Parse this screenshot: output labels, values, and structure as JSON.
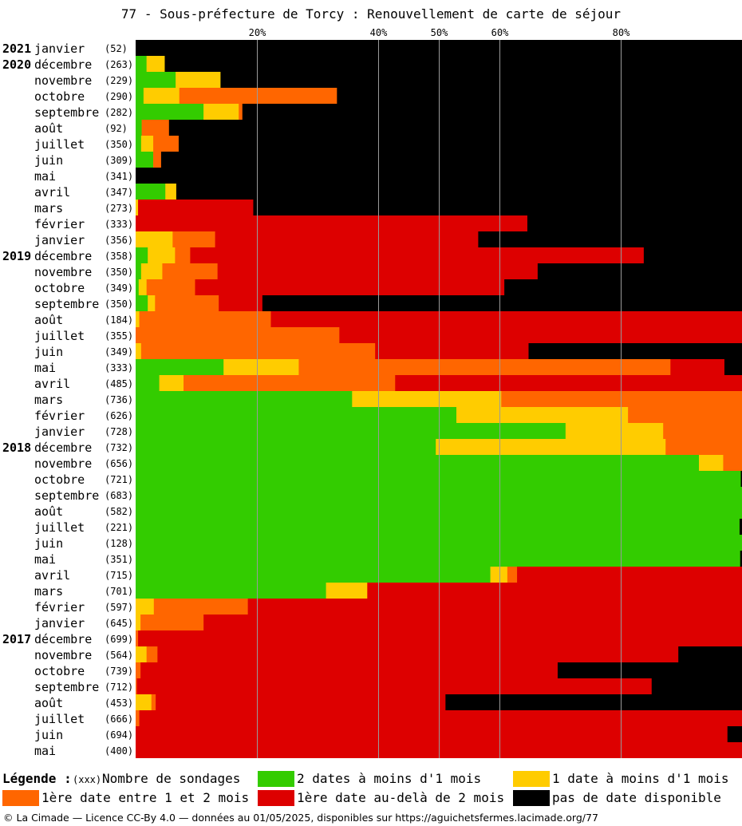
{
  "title": "77 - Sous-préfecture de Torcy : Renouvellement de carte de séjour",
  "legend": {
    "heading": "Légende :",
    "count_marker": "(xxx)",
    "count_label": "Nombre de sondages",
    "items": [
      {
        "key": "green",
        "label": "2 dates à moins d'1 mois",
        "color": "#33cc00"
      },
      {
        "key": "yellow",
        "label": "1 date à moins d'1 mois",
        "color": "#ffcc00"
      },
      {
        "key": "orange",
        "label": "1ère date entre 1 et 2 mois",
        "color": "#ff6600"
      },
      {
        "key": "red",
        "label": "1ère date au-delà de 2 mois",
        "color": "#dd0000"
      },
      {
        "key": "black",
        "label": "pas de date disponible",
        "color": "#000000"
      }
    ]
  },
  "footer": "© La Cimade — Licence CC-By 4.0 — données au 01/05/2025, disponibles sur https://aguichetsfermes.lacimade.org/77",
  "chart_data": {
    "type": "bar",
    "orientation": "horizontal-stacked-100",
    "title": "77 - Sous-préfecture de Torcy : Renouvellement de carte de séjour",
    "x_ticks": [
      "20%",
      "40%",
      "50%",
      "60%",
      "80%"
    ],
    "x_tick_values": [
      20,
      40,
      50,
      60,
      80
    ],
    "xlim": [
      0,
      100
    ],
    "grid": true,
    "series_names": [
      "2 dates à moins d'1 mois",
      "1 date à moins d'1 mois",
      "1ère date entre 1 et 2 mois",
      "1ère date au-delà de 2 mois",
      "pas de date disponible"
    ],
    "series_colors": [
      "#33cc00",
      "#ffcc00",
      "#ff6600",
      "#dd0000",
      "#000000"
    ],
    "rows": [
      {
        "year": "2021",
        "month": "janvier",
        "count": "(52)",
        "values": [
          0,
          0,
          0,
          0,
          100
        ]
      },
      {
        "year": "2020",
        "month": "décembre",
        "count": "(263)",
        "values": [
          1.8,
          3.0,
          0,
          0,
          95.2
        ]
      },
      {
        "year": "",
        "month": "novembre",
        "count": "(229)",
        "values": [
          6.6,
          7.4,
          0,
          0,
          86.0
        ]
      },
      {
        "year": "",
        "month": "octobre",
        "count": "(290)",
        "values": [
          1.3,
          5.9,
          26.0,
          0,
          66.8
        ]
      },
      {
        "year": "",
        "month": "septembre",
        "count": "(282)",
        "values": [
          11.2,
          5.8,
          0.6,
          0,
          82.4
        ]
      },
      {
        "year": "",
        "month": "août",
        "count": "(92)",
        "values": [
          1.0,
          0,
          4.5,
          0,
          94.5
        ]
      },
      {
        "year": "",
        "month": "juillet",
        "count": "(350)",
        "values": [
          0.9,
          2.0,
          4.2,
          0,
          92.9
        ]
      },
      {
        "year": "",
        "month": "juin",
        "count": "(309)",
        "values": [
          2.9,
          0,
          1.3,
          0,
          95.8
        ]
      },
      {
        "year": "",
        "month": "mai",
        "count": "(341)",
        "values": [
          0,
          0,
          0,
          0,
          100
        ]
      },
      {
        "year": "",
        "month": "avril",
        "count": "(347)",
        "values": [
          4.9,
          1.8,
          0,
          0,
          93.3
        ]
      },
      {
        "year": "",
        "month": "mars",
        "count": "(273)",
        "values": [
          0,
          0.4,
          0,
          19.0,
          80.6
        ]
      },
      {
        "year": "",
        "month": "février",
        "count": "(333)",
        "values": [
          0,
          0,
          0,
          64.6,
          35.4
        ]
      },
      {
        "year": "",
        "month": "janvier",
        "count": "(356)",
        "values": [
          0,
          6.1,
          7.0,
          43.4,
          43.5
        ]
      },
      {
        "year": "2019",
        "month": "décembre",
        "count": "(358)",
        "values": [
          2.0,
          4.5,
          2.5,
          74.8,
          16.2
        ]
      },
      {
        "year": "",
        "month": "novembre",
        "count": "(350)",
        "values": [
          0.9,
          3.5,
          9.1,
          52.8,
          33.7
        ]
      },
      {
        "year": "",
        "month": "octobre",
        "count": "(349)",
        "values": [
          0.5,
          1.3,
          8.0,
          51.0,
          39.2
        ]
      },
      {
        "year": "",
        "month": "septembre",
        "count": "(350)",
        "values": [
          2.0,
          1.2,
          10.5,
          7.2,
          79.1
        ]
      },
      {
        "year": "",
        "month": "août",
        "count": "(184)",
        "values": [
          0,
          0.6,
          21.7,
          77.7,
          0
        ]
      },
      {
        "year": "",
        "month": "juillet",
        "count": "(355)",
        "values": [
          0,
          0,
          33.6,
          66.4,
          0
        ]
      },
      {
        "year": "",
        "month": "juin",
        "count": "(349)",
        "values": [
          0,
          0.9,
          38.6,
          25.3,
          35.2
        ]
      },
      {
        "year": "",
        "month": "mai",
        "count": "(333)",
        "values": [
          14.5,
          12.4,
          61.3,
          8.9,
          2.9
        ]
      },
      {
        "year": "",
        "month": "avril",
        "count": "(485)",
        "values": [
          3.9,
          4.0,
          34.9,
          57.2,
          0
        ]
      },
      {
        "year": "",
        "month": "mars",
        "count": "(736)",
        "values": [
          35.7,
          24.6,
          39.7,
          0,
          0
        ]
      },
      {
        "year": "",
        "month": "février",
        "count": "(626)",
        "values": [
          52.9,
          28.3,
          18.8,
          0,
          0
        ]
      },
      {
        "year": "",
        "month": "janvier",
        "count": "(728)",
        "values": [
          70.9,
          16.1,
          13.0,
          0,
          0
        ]
      },
      {
        "year": "2018",
        "month": "décembre",
        "count": "(732)",
        "values": [
          49.5,
          37.9,
          12.6,
          0,
          0
        ]
      },
      {
        "year": "",
        "month": "novembre",
        "count": "(656)",
        "values": [
          92.9,
          4.0,
          3.1,
          0,
          0
        ]
      },
      {
        "year": "",
        "month": "octobre",
        "count": "(721)",
        "values": [
          99.8,
          0,
          0,
          0,
          0.2
        ]
      },
      {
        "year": "",
        "month": "septembre",
        "count": "(683)",
        "values": [
          100,
          0,
          0,
          0,
          0
        ]
      },
      {
        "year": "",
        "month": "août",
        "count": "(582)",
        "values": [
          100,
          0,
          0,
          0,
          0
        ]
      },
      {
        "year": "",
        "month": "juillet",
        "count": "(221)",
        "values": [
          99.6,
          0,
          0,
          0,
          0.4
        ]
      },
      {
        "year": "",
        "month": "juin",
        "count": "(128)",
        "values": [
          100,
          0,
          0,
          0,
          0
        ]
      },
      {
        "year": "",
        "month": "mai",
        "count": "(351)",
        "values": [
          99.7,
          0,
          0,
          0,
          0.3
        ]
      },
      {
        "year": "",
        "month": "avril",
        "count": "(715)",
        "values": [
          58.5,
          2.8,
          1.6,
          37.1,
          0
        ]
      },
      {
        "year": "",
        "month": "mars",
        "count": "(701)",
        "values": [
          31.4,
          6.8,
          0,
          61.8,
          0
        ]
      },
      {
        "year": "",
        "month": "février",
        "count": "(597)",
        "values": [
          0,
          3.0,
          15.5,
          81.5,
          0
        ]
      },
      {
        "year": "",
        "month": "janvier",
        "count": "(645)",
        "values": [
          0,
          0.8,
          10.4,
          88.8,
          0
        ]
      },
      {
        "year": "2017",
        "month": "décembre",
        "count": "(699)",
        "values": [
          0,
          0,
          0.4,
          99.6,
          0
        ]
      },
      {
        "year": "",
        "month": "novembre",
        "count": "(564)",
        "values": [
          0,
          1.8,
          1.8,
          85.9,
          10.5
        ]
      },
      {
        "year": "",
        "month": "octobre",
        "count": "(739)",
        "values": [
          0,
          0,
          0.8,
          68.8,
          30.4
        ]
      },
      {
        "year": "",
        "month": "septembre",
        "count": "(712)",
        "values": [
          0,
          0,
          0.2,
          84.9,
          14.9
        ]
      },
      {
        "year": "",
        "month": "août",
        "count": "(453)",
        "values": [
          0,
          2.6,
          0.7,
          47.8,
          48.9
        ]
      },
      {
        "year": "",
        "month": "juillet",
        "count": "(666)",
        "values": [
          0,
          0,
          0.6,
          99.4,
          0
        ]
      },
      {
        "year": "",
        "month": "juin",
        "count": "(694)",
        "values": [
          0,
          0,
          0,
          97.6,
          2.4
        ]
      },
      {
        "year": "",
        "month": "mai",
        "count": "(400)",
        "values": [
          0,
          0,
          0,
          100,
          0
        ]
      }
    ]
  }
}
